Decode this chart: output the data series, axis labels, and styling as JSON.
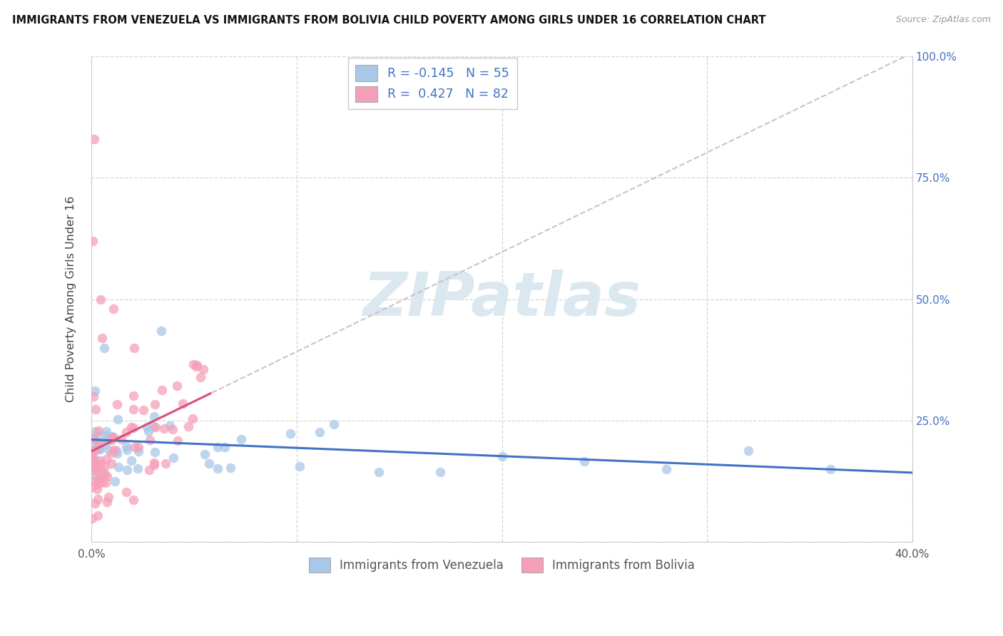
{
  "title": "IMMIGRANTS FROM VENEZUELA VS IMMIGRANTS FROM BOLIVIA CHILD POVERTY AMONG GIRLS UNDER 16 CORRELATION CHART",
  "source": "Source: ZipAtlas.com",
  "ylabel": "Child Poverty Among Girls Under 16",
  "xlim": [
    0.0,
    0.4
  ],
  "ylim": [
    0.0,
    1.0
  ],
  "xticks": [
    0.0,
    0.1,
    0.2,
    0.3,
    0.4
  ],
  "xtick_labels": [
    "0.0%",
    "",
    "",
    "",
    "40.0%"
  ],
  "yticks": [
    0.0,
    0.25,
    0.5,
    0.75,
    1.0
  ],
  "ytick_right_labels": [
    "",
    "25.0%",
    "50.0%",
    "75.0%",
    "100.0%"
  ],
  "R_venezuela": -0.145,
  "N_venezuela": 55,
  "R_bolivia": 0.427,
  "N_bolivia": 82,
  "color_venezuela": "#a8c8e8",
  "color_bolivia": "#f5a0b8",
  "trendline_color_venezuela": "#4472c4",
  "trendline_color_bolivia": "#d94f7a",
  "trendline_dashed_color": "#ccb8c8",
  "watermark_text": "ZIPatlas",
  "watermark_color": "#dce8f0",
  "legend_label_venezuela": "Immigrants from Venezuela",
  "legend_label_bolivia": "Immigrants from Bolivia",
  "axis_label_color": "#4472c4",
  "grid_color": "#cccccc",
  "legend_R_color": "#4472c4",
  "legend_text_color": "#333333"
}
